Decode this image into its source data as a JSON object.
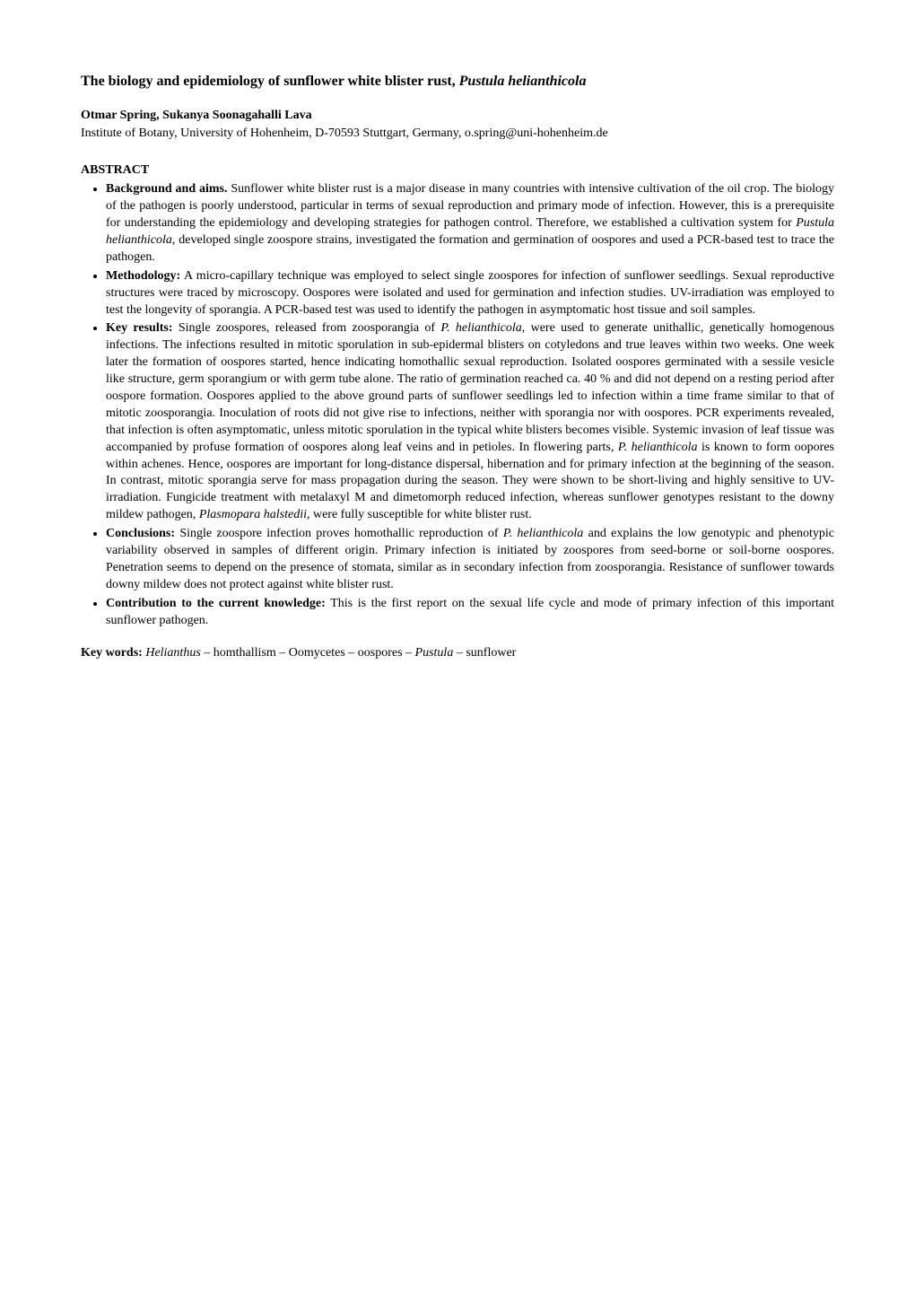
{
  "title_pre": "The biology and epidemiology of sunflower white blister rust, ",
  "title_species": "Pustula helianthicola",
  "authors": "Otmar Spring, Sukanya Soonagahalli Lava",
  "affiliation": "Institute of Botany, University of Hohenheim, D-70593 Stuttgart, Germany, o.spring@uni-hohenheim.de",
  "abstract_heading": "ABSTRACT",
  "bullets": {
    "background": {
      "label": "Background and aims.",
      "pre": " Sunflower white blister rust is a major disease in many countries with intensive cultivation of the oil crop. The biology of the pathogen is poorly understood, particular in terms of sexual reproduction and primary mode of infection. However, this is a prerequisite for understanding the epidemiology and developing strategies for pathogen control. Therefore, we established a cultivation system for ",
      "species": "Pustula helianthicola",
      "post": ", developed single zoospore strains, investigated the formation and germination of oospores and used a PCR-based test to trace the pathogen."
    },
    "methodology": {
      "label": "Methodology:",
      "text": " A micro-capillary technique was employed to select single zoospores for infection of sunflower seedlings. Sexual reproductive structures were traced by microscopy. Oospores were isolated and used for germination and infection studies. UV-irradiation was employed to test the longevity of sporangia. A PCR-based test was used to identify the pathogen in asymptomatic host tissue and soil samples."
    },
    "keyresults": {
      "label": "Key results:",
      "pre": " Single zoospores, released from zoosporangia of ",
      "species1": "P. helianthicola",
      "mid1": ", were used to generate unithallic, genetically homogenous infections. The infections resulted in mitotic sporulation in sub-epidermal blisters on cotyledons and true leaves within two weeks. One week later the formation of oospores started, hence indicating homothallic sexual reproduction. Isolated oospores germinated with a sessile vesicle like structure, germ sporangium or with germ tube alone. The ratio of germination reached ca. 40 % and did not depend on a resting period after oospore formation. Oospores applied to the above ground parts of sunflower seedlings led to infection within a time frame similar to that of mitotic zoosporangia. Inoculation of roots did not give rise to infections, neither with sporangia nor with oospores. PCR experiments revealed, that infection is often asymptomatic, unless mitotic sporulation in the typical white blisters becomes visible. Systemic invasion of leaf tissue was accompanied by profuse formation of oospores along leaf veins and in petioles. In flowering parts, ",
      "species2": "P. helianthicola",
      "mid2": " is known to form oopores within achenes. Hence, oospores are important for long-distance dispersal, hibernation and for primary infection at the beginning of the season. In contrast, mitotic sporangia serve for mass propagation during the season. They were shown to be short-living and highly sensitive to UV-irradiation. Fungicide treatment with metalaxyl M and dimetomorph reduced infection, whereas sunflower genotypes resistant to the downy mildew pathogen, ",
      "species3": "Plasmopara halstedii",
      "post": ", were fully susceptible for white blister rust."
    },
    "conclusions": {
      "label": "Conclusions:",
      "pre": " Single zoospore infection proves homothallic reproduction of ",
      "species": "P. helianthicola",
      "post": " and explains the low genotypic and phenotypic variability observed in samples of different origin. Primary infection is initiated by zoospores from seed-borne or soil-borne oospores. Penetration seems to depend on the presence of stomata, similar as in secondary infection from zoosporangia. Resistance of sunflower towards downy mildew does not protect against white blister rust."
    },
    "contribution": {
      "label": "Contribution to the current knowledge:",
      "text": " This is the first report on the sexual life cycle and mode of primary infection of this important sunflower pathogen."
    }
  },
  "keywords": {
    "label": "Key words:",
    "sep": " – ",
    "item1_italic": "Helianthus",
    "item2": "homthallism",
    "item3": "Oomycetes",
    "item4": "oospores",
    "item5_italic": "Pustula",
    "item6": "sunflower"
  }
}
